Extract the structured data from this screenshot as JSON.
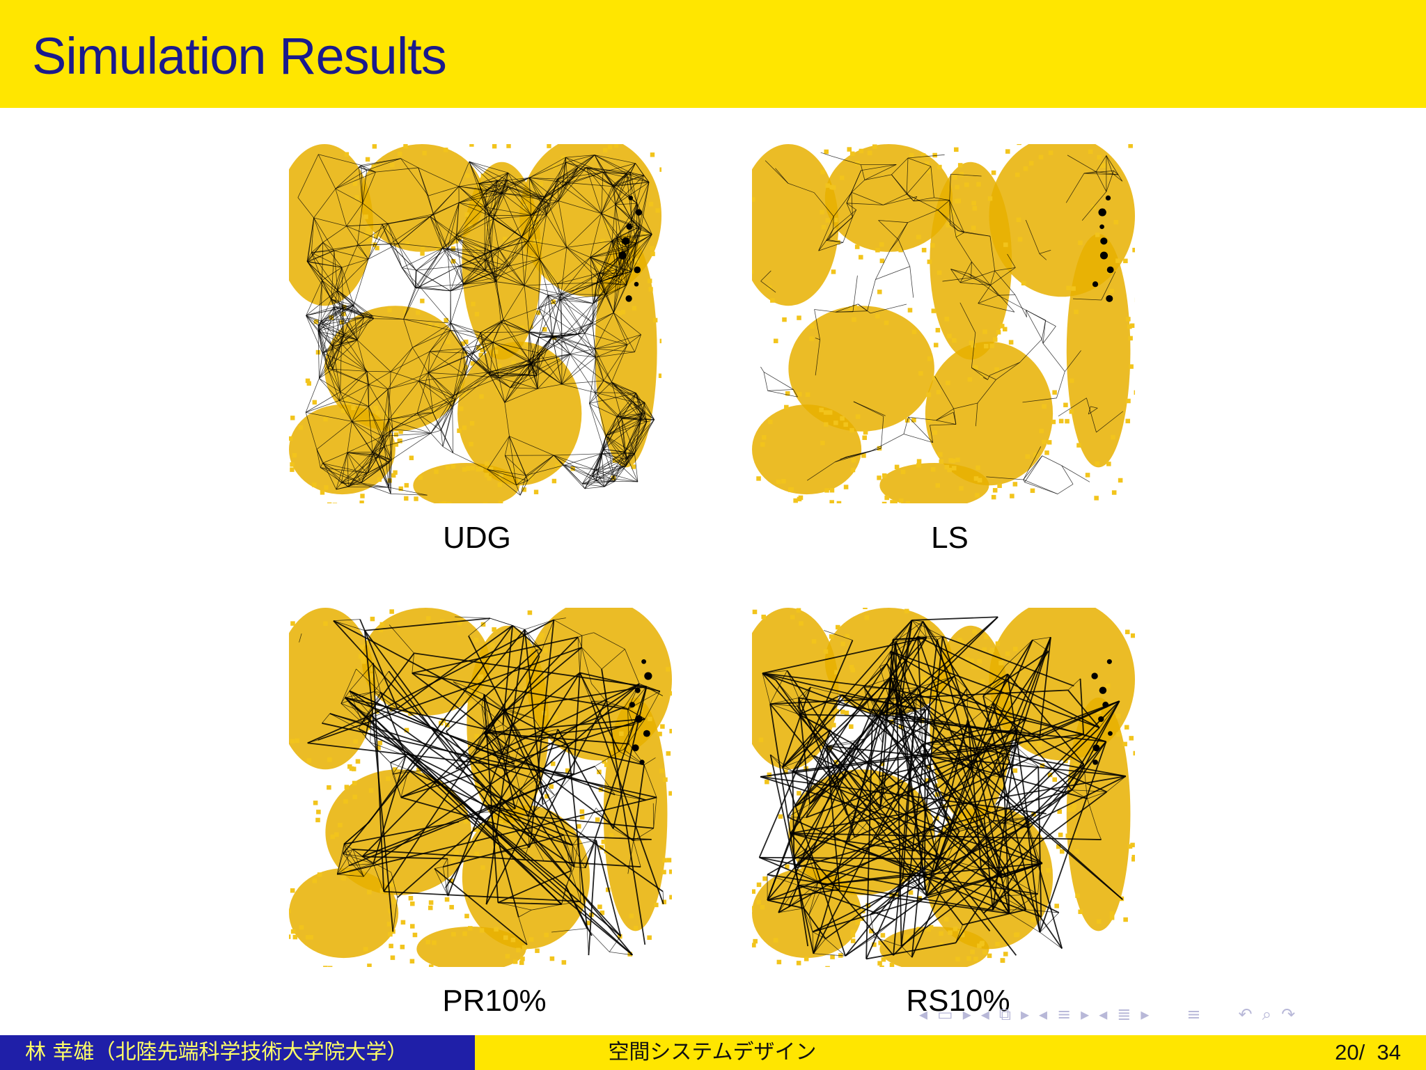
{
  "slide": {
    "title": "Simulation Results"
  },
  "panels": [
    {
      "id": "udg",
      "caption": "UDG",
      "edge_density": "very-high",
      "long_links": false
    },
    {
      "id": "ls",
      "caption": "LS",
      "edge_density": "medium",
      "long_links": false
    },
    {
      "id": "pr10",
      "caption": "PR10%",
      "edge_density": "medium",
      "long_links": "moderate"
    },
    {
      "id": "rs10",
      "caption": "RS10%",
      "edge_density": "medium",
      "long_links": "many"
    }
  ],
  "colors": {
    "title_bar": "#ffe600",
    "title_text": "#1a1a8c",
    "map_fill": "#e8b000",
    "map_fill_light": "#f2c41c",
    "edge": "#000000",
    "footer_left": "#1f1fa8",
    "footer_left_text": "#ffff66",
    "footer_right": "#ffe600"
  },
  "nav_icons": [
    "arrow-left-icon",
    "arrow-right-icon",
    "frame-icon",
    "section-icon",
    "subsection-icon",
    "align-icon",
    "undo-icon",
    "search-icon"
  ],
  "footer": {
    "author": "林 幸雄（北陸先端科学技術大学院大学）",
    "course": "空間システムデザイン",
    "page": "20",
    "separator": "/",
    "total": "34"
  }
}
